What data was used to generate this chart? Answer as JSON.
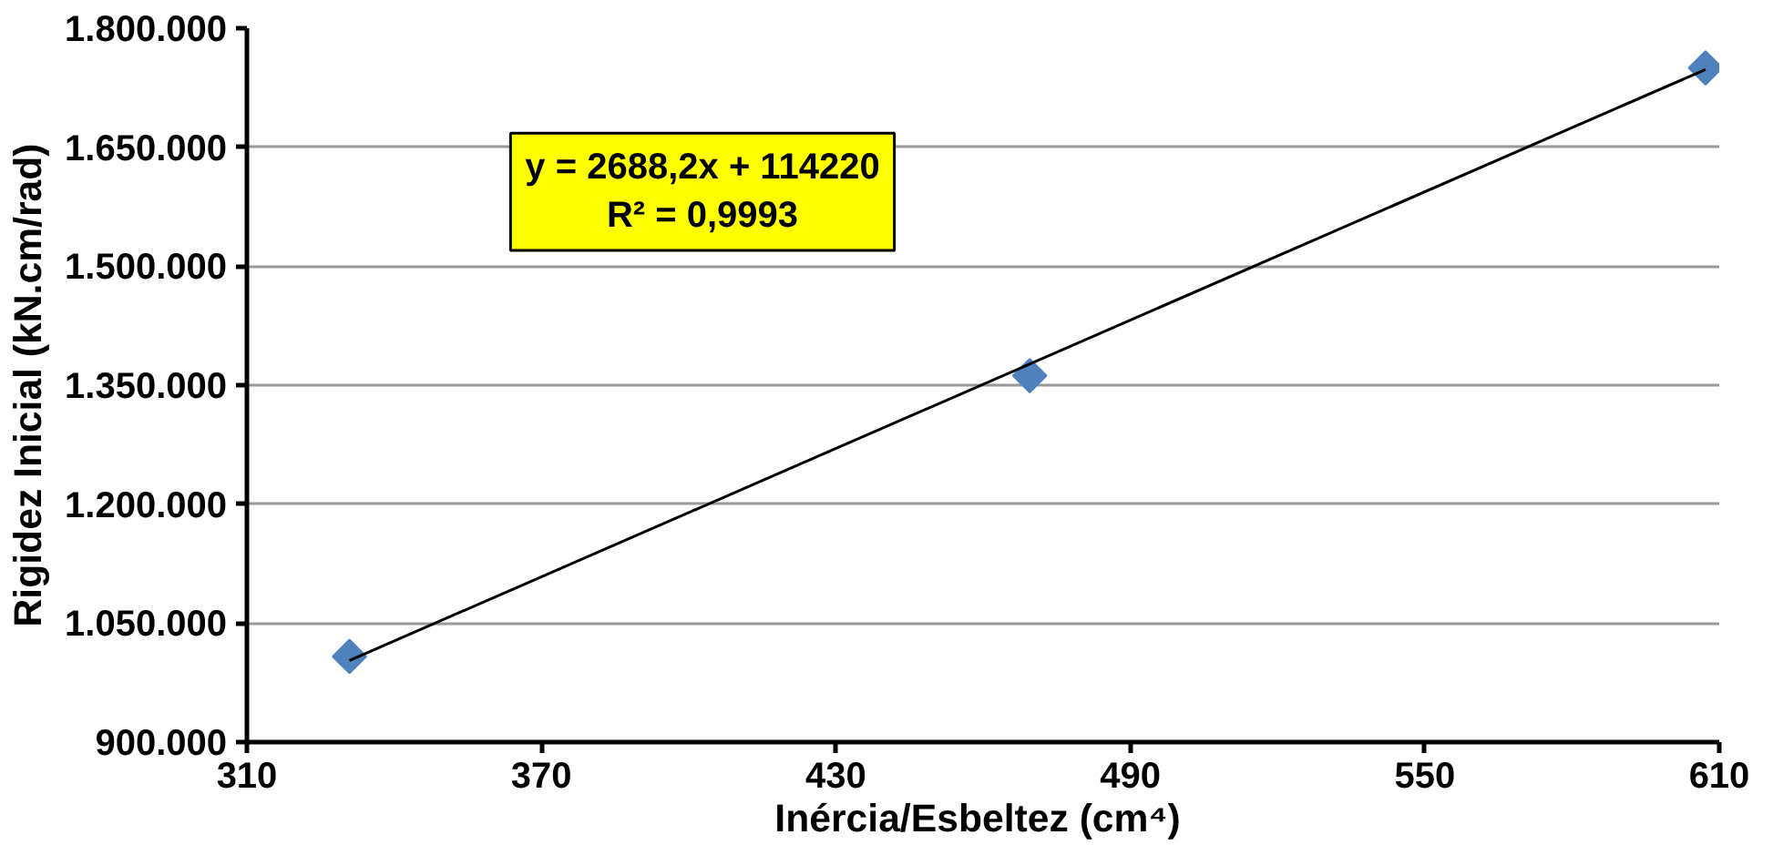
{
  "chart_data": {
    "type": "scatter",
    "xlabel": "Inércia/Esbeltez  (cm⁴)",
    "ylabel": "Rigidez Inicial (kN.cm/rad)",
    "series": [
      {
        "marker": "diamond",
        "color": "#4f81bd",
        "x": [
          330.9,
          469.5,
          607.2
        ],
        "values": [
          1008000,
          1362000,
          1750000
        ]
      },
      {
        "type": "line",
        "marker": "none",
        "color": "#000000",
        "x": [
          330.9,
          607.2
        ],
        "values": [
          1003000,
          1748000
        ]
      }
    ],
    "grid": "y",
    "xlim": [
      310,
      610
    ],
    "xticks": [
      310,
      370,
      430,
      490,
      550,
      610
    ],
    "ylim": [
      900000,
      1800000
    ],
    "yticks": [
      {
        "value": 900000,
        "label": "900.000"
      },
      {
        "value": 1050000,
        "label": "1.050.000"
      },
      {
        "value": 1200000,
        "label": "1.200.000"
      },
      {
        "value": 1350000,
        "label": "1.350.000"
      },
      {
        "value": 1500000,
        "label": "1.500.000"
      },
      {
        "value": 1650000,
        "label": "1.650.000"
      },
      {
        "value": 1800000,
        "label": "1.800.000"
      }
    ],
    "annotations": [
      "y = 2688,2x + 114220",
      "R² = 0,9993"
    ]
  }
}
